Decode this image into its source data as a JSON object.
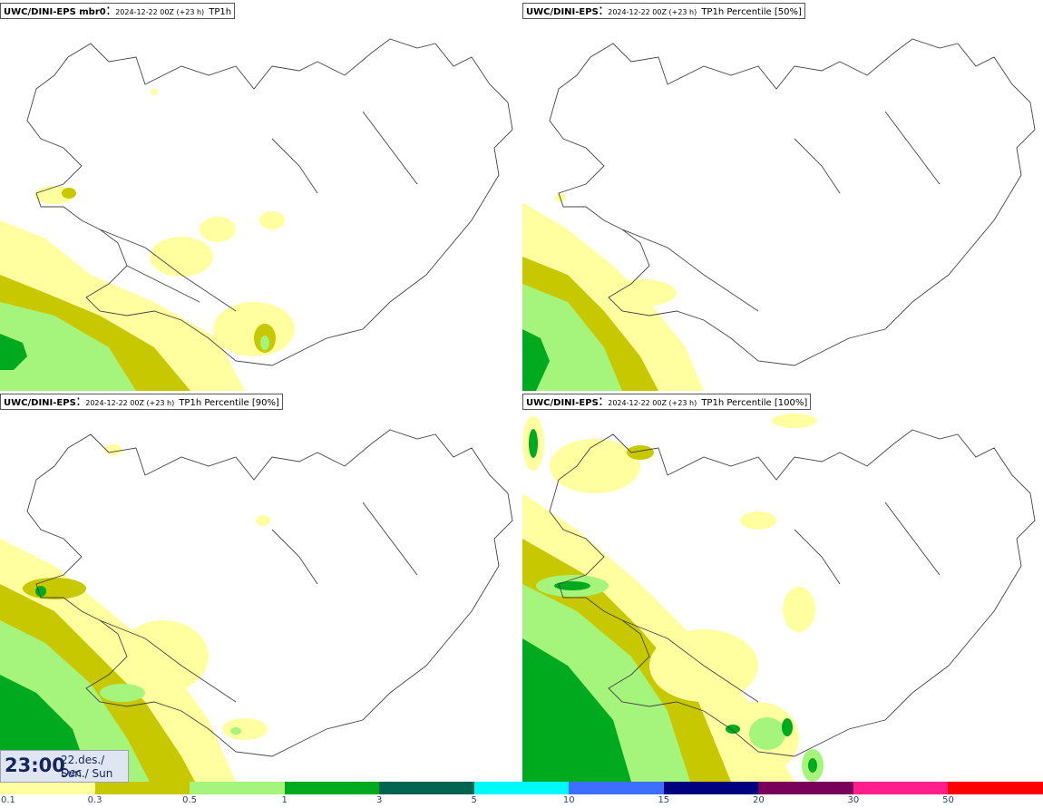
{
  "panels": [
    {
      "source": "UWC/DINI-EPS mbr0",
      "run": "2024-12-22 00Z (+23 h)",
      "variable": "TP1h"
    },
    {
      "source": "UWC/DINI-EPS",
      "run": "2024-12-22 00Z (+23 h)",
      "variable": "TP1h Percentile [50%]"
    },
    {
      "source": "UWC/DINI-EPS",
      "run": "2024-12-22 00Z (+23 h)",
      "variable": "TP1h Percentile [90%]"
    },
    {
      "source": "UWC/DINI-EPS",
      "run": "2024-12-22 00Z (+23 h)",
      "variable": "TP1h Percentile [100%]"
    }
  ],
  "time": {
    "hour": "23:00",
    "date": "22.des./ Dec",
    "day": "Sun./ Sun"
  },
  "legend": {
    "labels": [
      "0.1",
      "0.3",
      "0.5",
      "1",
      "3",
      "5",
      "10",
      "15",
      "20",
      "30",
      "50"
    ],
    "colors": [
      "#ffff9f",
      "#c8c800",
      "#a5f57d",
      "#00aa1e",
      "#006450",
      "#00fafa",
      "#3c6eff",
      "#000080",
      "#78005a",
      "#ff1e8c",
      "#ff0000"
    ]
  },
  "map": {
    "land_color": "#ffffff",
    "outline_color": "#444444",
    "sea_color": "#ffffff"
  }
}
